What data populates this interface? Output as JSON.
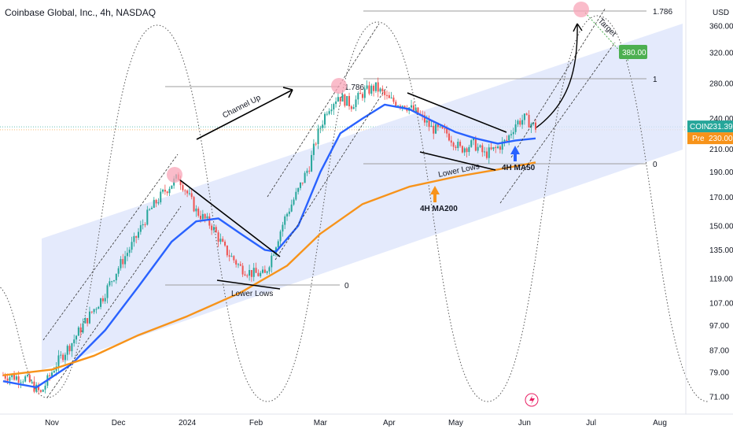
{
  "header": {
    "title": "Coinbase Global, Inc., 4h, NASDAQ",
    "currency": "USD"
  },
  "colors": {
    "up": "#26a69a",
    "down": "#ef5350",
    "ma50": "#2962ff",
    "ma200": "#f7931a",
    "channel": "#dbe3fb",
    "target_badge": "#4caf50",
    "last_badge": "#26a69a",
    "pre_badge": "#f7931a"
  },
  "badges": {
    "last_symbol": "COIN",
    "last_price": "231.39",
    "pre_label": "Pre",
    "pre_price": "230.00",
    "target_price": "380.00"
  },
  "fib_labels": {
    "upper_1786": "1.786",
    "upper_1": "1",
    "upper_0": "0",
    "mid_1786": "1.786",
    "lower_0": "0"
  },
  "annotations": {
    "channel_up": "Channel Up",
    "lower_lows_1": "Lower Lows",
    "lower_lows_2": "Lower Lows",
    "ma50": "4H MA50",
    "ma200": "4H MA200",
    "target": "Target"
  },
  "chart_data": {
    "type": "line",
    "title": "Coinbase Global, Inc., 4h, NASDAQ",
    "y_scale": "log",
    "ylim": [
      68,
      380
    ],
    "y_ticks": [
      71.0,
      79.0,
      87.0,
      97.0,
      107.0,
      119.0,
      135.0,
      150.0,
      170.0,
      190.0,
      210.0,
      240.0,
      280.0,
      320.0,
      360.0
    ],
    "x_ticks": [
      "Nov",
      "Dec",
      "2024",
      "Feb",
      "Mar",
      "Apr",
      "May",
      "Jun",
      "Jul",
      "Aug"
    ],
    "x_tick_dates": [
      "2023-11-01",
      "2023-12-01",
      "2024-01-01",
      "2024-02-01",
      "2024-03-01",
      "2024-04-01",
      "2024-05-01",
      "2024-06-01",
      "2024-07-01",
      "2024-08-01"
    ],
    "price_path": [
      [
        "2023-10-10",
        78
      ],
      [
        "2023-10-20",
        77
      ],
      [
        "2023-10-27",
        72
      ],
      [
        "2023-11-03",
        82
      ],
      [
        "2023-11-10",
        90
      ],
      [
        "2023-11-17",
        100
      ],
      [
        "2023-11-24",
        110
      ],
      [
        "2023-12-01",
        125
      ],
      [
        "2023-12-08",
        140
      ],
      [
        "2023-12-15",
        160
      ],
      [
        "2023-12-22",
        175
      ],
      [
        "2023-12-28",
        186
      ],
      [
        "2024-01-05",
        160
      ],
      [
        "2024-01-12",
        150
      ],
      [
        "2024-01-18",
        135
      ],
      [
        "2024-01-25",
        125
      ],
      [
        "2024-01-30",
        122
      ],
      [
        "2024-02-05",
        121
      ],
      [
        "2024-02-09",
        135
      ],
      [
        "2024-02-14",
        155
      ],
      [
        "2024-02-20",
        175
      ],
      [
        "2024-02-25",
        195
      ],
      [
        "2024-02-29",
        225
      ],
      [
        "2024-03-04",
        250
      ],
      [
        "2024-03-09",
        265
      ],
      [
        "2024-03-15",
        255
      ],
      [
        "2024-03-21",
        270
      ],
      [
        "2024-03-26",
        275
      ],
      [
        "2024-04-01",
        260
      ],
      [
        "2024-04-08",
        255
      ],
      [
        "2024-04-14",
        245
      ],
      [
        "2024-04-20",
        230
      ],
      [
        "2024-04-27",
        225
      ],
      [
        "2024-05-03",
        210
      ],
      [
        "2024-05-09",
        215
      ],
      [
        "2024-05-14",
        205
      ],
      [
        "2024-05-19",
        210
      ],
      [
        "2024-05-24",
        218
      ],
      [
        "2024-05-28",
        235
      ],
      [
        "2024-06-01",
        240
      ],
      [
        "2024-06-06",
        231
      ]
    ],
    "series": [
      {
        "name": "4H MA50",
        "values": [
          [
            "2023-10-10",
            76
          ],
          [
            "2023-10-25",
            74
          ],
          [
            "2023-11-10",
            82
          ],
          [
            "2023-11-25",
            95
          ],
          [
            "2023-12-10",
            115
          ],
          [
            "2023-12-25",
            140
          ],
          [
            "2024-01-05",
            153
          ],
          [
            "2024-01-15",
            155
          ],
          [
            "2024-01-25",
            145
          ],
          [
            "2024-02-05",
            135
          ],
          [
            "2024-02-10",
            134
          ],
          [
            "2024-02-20",
            150
          ],
          [
            "2024-03-01",
            190
          ],
          [
            "2024-03-10",
            225
          ],
          [
            "2024-03-20",
            240
          ],
          [
            "2024-03-30",
            255
          ],
          [
            "2024-04-10",
            250
          ],
          [
            "2024-04-20",
            238
          ],
          [
            "2024-05-01",
            226
          ],
          [
            "2024-05-10",
            220
          ],
          [
            "2024-05-20",
            215
          ],
          [
            "2024-05-28",
            218
          ],
          [
            "2024-06-06",
            220
          ]
        ]
      },
      {
        "name": "4H MA200",
        "values": [
          [
            "2023-10-10",
            78
          ],
          [
            "2023-11-01",
            80
          ],
          [
            "2023-11-20",
            85
          ],
          [
            "2023-12-10",
            93
          ],
          [
            "2024-01-01",
            101
          ],
          [
            "2024-01-25",
            112
          ],
          [
            "2024-02-15",
            126
          ],
          [
            "2024-03-01",
            145
          ],
          [
            "2024-03-20",
            165
          ],
          [
            "2024-04-10",
            178
          ],
          [
            "2024-05-01",
            186
          ],
          [
            "2024-05-20",
            192
          ],
          [
            "2024-06-06",
            198
          ]
        ]
      }
    ],
    "target": {
      "date": "2024-06-26",
      "value": 380.0
    },
    "last_price": 231.39,
    "pre_price": 230.0
  }
}
